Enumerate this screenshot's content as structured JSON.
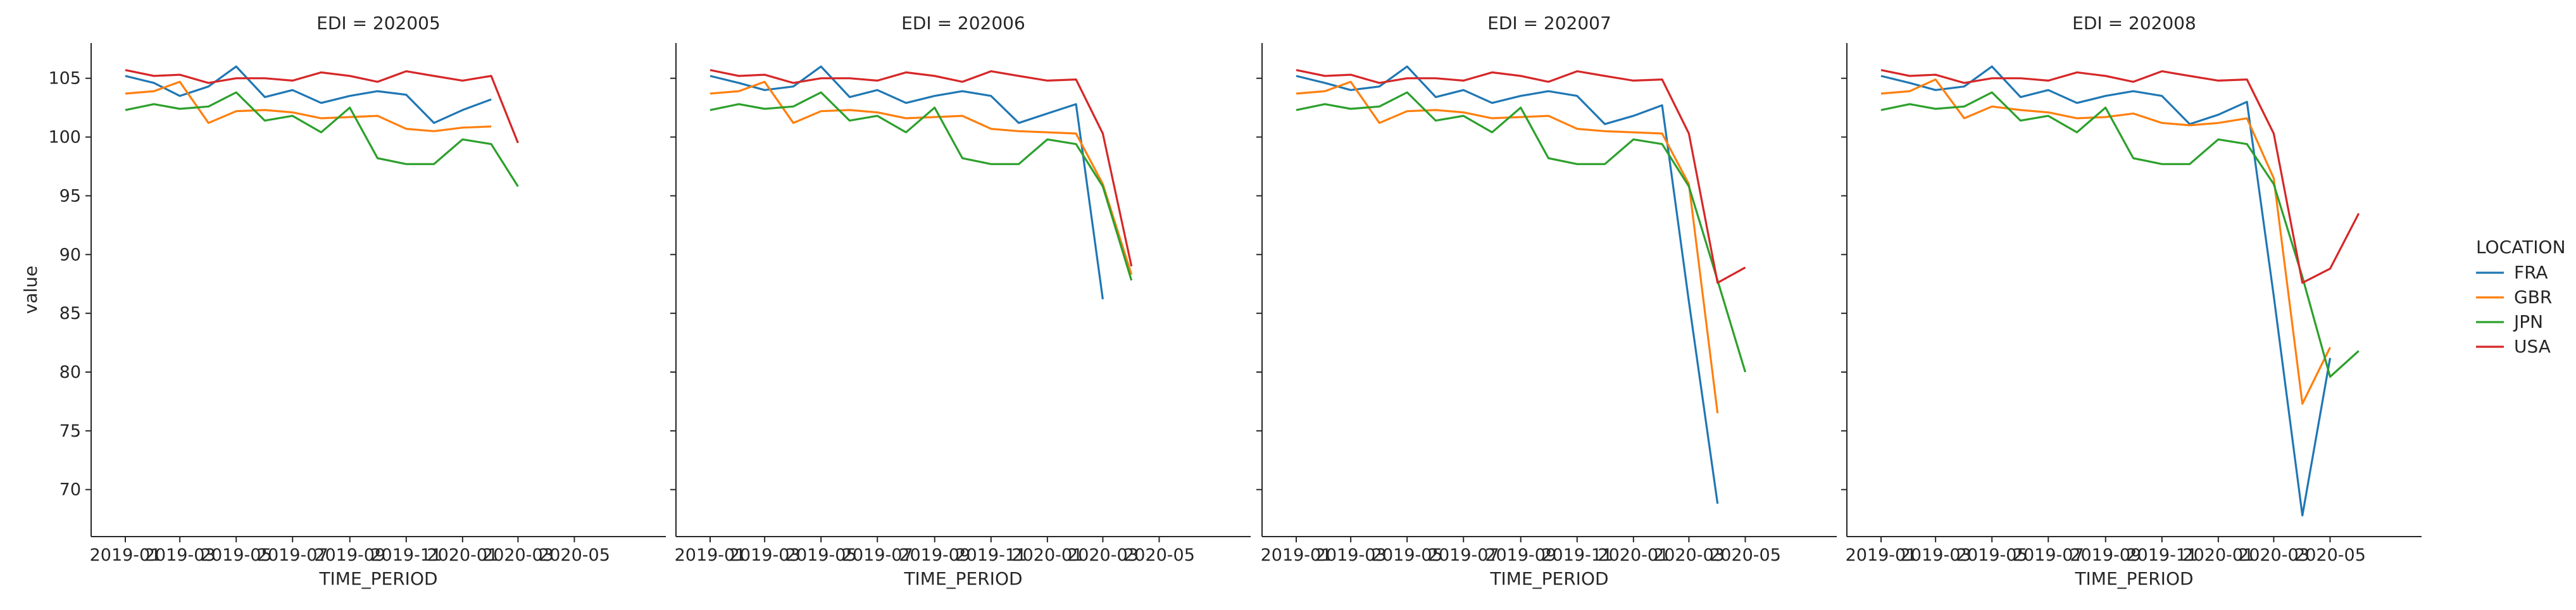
{
  "chart_data": {
    "type": "line",
    "ylabel": "value",
    "xlabel": "TIME_PERIOD",
    "ylim": [
      66,
      108
    ],
    "yticks": [
      70,
      75,
      80,
      85,
      90,
      95,
      100,
      105
    ],
    "xlim": [
      "2018-11-25",
      "2020-08-08"
    ],
    "xticks": [
      "2019-01",
      "2019-03",
      "2019-05",
      "2019-07",
      "2019-09",
      "2019-11",
      "2020-01",
      "2020-03",
      "2020-05"
    ],
    "grid": false,
    "legend": {
      "title": "LOCATION",
      "placement": "right",
      "entries": [
        {
          "name": "FRA",
          "color": "#1f77b4"
        },
        {
          "name": "GBR",
          "color": "#ff7f0e"
        },
        {
          "name": "JPN",
          "color": "#2ca02c"
        },
        {
          "name": "USA",
          "color": "#d62728"
        }
      ]
    },
    "panels": [
      {
        "title": "EDI = 202005",
        "x": [
          "2019-01",
          "2019-02",
          "2019-03",
          "2019-04",
          "2019-05",
          "2019-06",
          "2019-07",
          "2019-08",
          "2019-09",
          "2019-10",
          "2019-11",
          "2019-12",
          "2020-01",
          "2020-02",
          "2020-03"
        ],
        "series": [
          {
            "name": "FRA",
            "values": [
              105.2,
              104.6,
              103.5,
              104.3,
              106.0,
              103.4,
              104.0,
              102.9,
              103.5,
              103.9,
              103.6,
              101.2,
              102.3,
              103.2,
              null
            ]
          },
          {
            "name": "GBR",
            "values": [
              103.7,
              103.9,
              104.7,
              101.2,
              102.2,
              102.3,
              102.1,
              101.6,
              101.7,
              101.8,
              100.7,
              100.5,
              100.8,
              100.9,
              null
            ]
          },
          {
            "name": "JPN",
            "values": [
              102.3,
              102.8,
              102.4,
              102.6,
              103.8,
              101.4,
              101.8,
              100.4,
              102.5,
              98.2,
              97.7,
              97.7,
              99.8,
              99.4,
              95.8
            ]
          },
          {
            "name": "USA",
            "values": [
              105.7,
              105.2,
              105.3,
              104.6,
              105.0,
              105.0,
              104.8,
              105.5,
              105.2,
              104.7,
              105.6,
              105.2,
              104.8,
              105.2,
              99.5
            ]
          }
        ]
      },
      {
        "title": "EDI = 202006",
        "x": [
          "2019-01",
          "2019-02",
          "2019-03",
          "2019-04",
          "2019-05",
          "2019-06",
          "2019-07",
          "2019-08",
          "2019-09",
          "2019-10",
          "2019-11",
          "2019-12",
          "2020-01",
          "2020-02",
          "2020-03",
          "2020-04"
        ],
        "series": [
          {
            "name": "FRA",
            "values": [
              105.2,
              104.6,
              104.0,
              104.3,
              106.0,
              103.4,
              104.0,
              102.9,
              103.5,
              103.9,
              103.5,
              101.2,
              102.0,
              102.8,
              86.2,
              null
            ]
          },
          {
            "name": "GBR",
            "values": [
              103.7,
              103.9,
              104.7,
              101.2,
              102.2,
              102.3,
              102.1,
              101.6,
              101.7,
              101.8,
              100.7,
              100.5,
              100.4,
              100.3,
              96.0,
              88.3
            ]
          },
          {
            "name": "JPN",
            "values": [
              102.3,
              102.8,
              102.4,
              102.6,
              103.8,
              101.4,
              101.8,
              100.4,
              102.5,
              98.2,
              97.7,
              97.7,
              99.8,
              99.4,
              95.8,
              87.8
            ]
          },
          {
            "name": "USA",
            "values": [
              105.7,
              105.2,
              105.3,
              104.6,
              105.0,
              105.0,
              104.8,
              105.5,
              105.2,
              104.7,
              105.6,
              105.2,
              104.8,
              104.9,
              100.3,
              89.0
            ]
          }
        ]
      },
      {
        "title": "EDI = 202007",
        "x": [
          "2019-01",
          "2019-02",
          "2019-03",
          "2019-04",
          "2019-05",
          "2019-06",
          "2019-07",
          "2019-08",
          "2019-09",
          "2019-10",
          "2019-11",
          "2019-12",
          "2020-01",
          "2020-02",
          "2020-03",
          "2020-04",
          "2020-05"
        ],
        "series": [
          {
            "name": "FRA",
            "values": [
              105.2,
              104.6,
              104.0,
              104.3,
              106.0,
              103.4,
              104.0,
              102.9,
              103.5,
              103.9,
              103.5,
              101.1,
              101.8,
              102.7,
              86.0,
              68.8,
              null
            ]
          },
          {
            "name": "GBR",
            "values": [
              103.7,
              103.9,
              104.7,
              101.2,
              102.2,
              102.3,
              102.1,
              101.6,
              101.7,
              101.8,
              100.7,
              100.5,
              100.4,
              100.3,
              96.0,
              76.5,
              null
            ]
          },
          {
            "name": "JPN",
            "values": [
              102.3,
              102.8,
              102.4,
              102.6,
              103.8,
              101.4,
              101.8,
              100.4,
              102.5,
              98.2,
              97.7,
              97.7,
              99.8,
              99.4,
              95.8,
              87.8,
              80.0
            ]
          },
          {
            "name": "USA",
            "values": [
              105.7,
              105.2,
              105.3,
              104.6,
              105.0,
              105.0,
              104.8,
              105.5,
              105.2,
              104.7,
              105.6,
              105.2,
              104.8,
              104.9,
              100.3,
              87.6,
              88.9
            ]
          }
        ]
      },
      {
        "title": "EDI = 202008",
        "x": [
          "2019-01",
          "2019-02",
          "2019-03",
          "2019-04",
          "2019-05",
          "2019-06",
          "2019-07",
          "2019-08",
          "2019-09",
          "2019-10",
          "2019-11",
          "2019-12",
          "2020-01",
          "2020-02",
          "2020-03",
          "2020-04",
          "2020-05",
          "2020-06"
        ],
        "series": [
          {
            "name": "FRA",
            "values": [
              105.2,
              104.6,
              104.0,
              104.3,
              106.0,
              103.4,
              104.0,
              102.9,
              103.5,
              103.9,
              103.5,
              101.1,
              101.9,
              103.0,
              86.5,
              67.8,
              81.2,
              null
            ]
          },
          {
            "name": "GBR",
            "values": [
              103.7,
              103.9,
              104.9,
              101.6,
              102.6,
              102.3,
              102.1,
              101.6,
              101.7,
              102.0,
              101.2,
              101.0,
              101.2,
              101.6,
              96.5,
              77.3,
              82.1,
              null
            ]
          },
          {
            "name": "JPN",
            "values": [
              102.3,
              102.8,
              102.4,
              102.6,
              103.8,
              101.4,
              101.8,
              100.4,
              102.5,
              98.2,
              97.7,
              97.7,
              99.8,
              99.4,
              96.0,
              88.1,
              79.6,
              81.8
            ]
          },
          {
            "name": "USA",
            "values": [
              105.7,
              105.2,
              105.3,
              104.6,
              105.0,
              105.0,
              104.8,
              105.5,
              105.2,
              104.7,
              105.6,
              105.2,
              104.8,
              104.9,
              100.3,
              87.6,
              88.8,
              93.5
            ]
          }
        ]
      }
    ]
  }
}
